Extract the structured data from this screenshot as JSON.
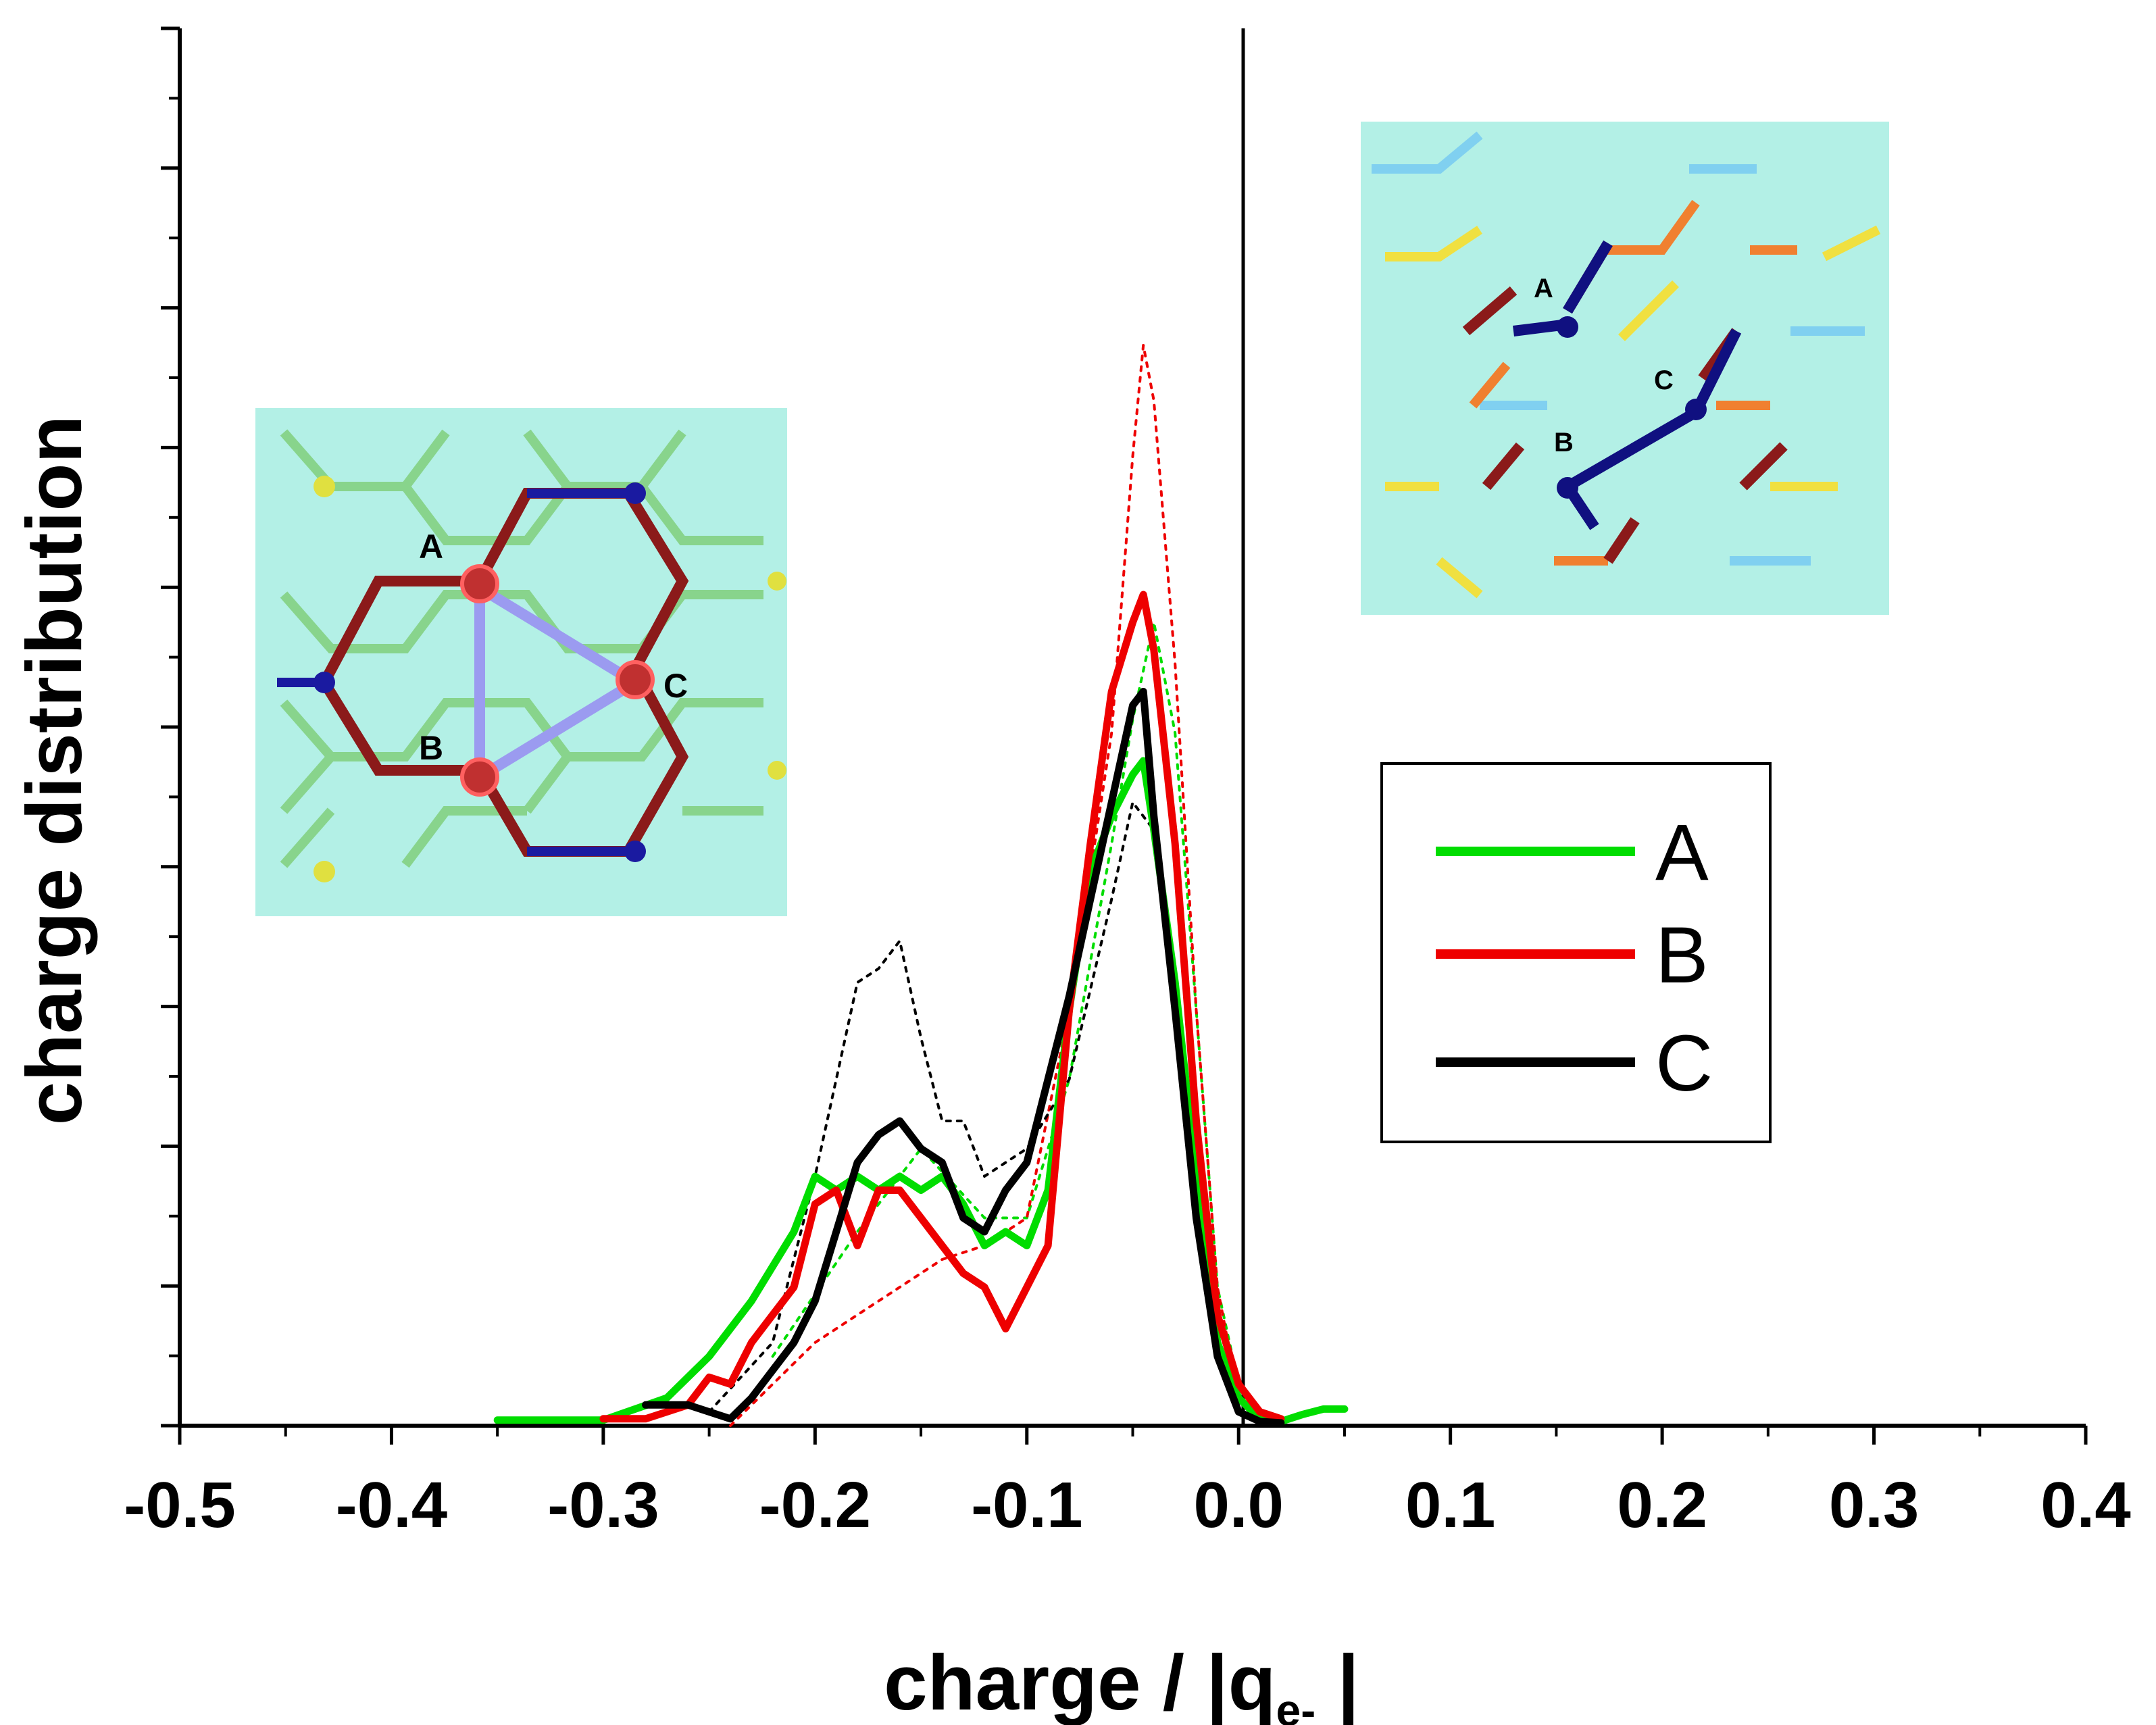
{
  "chart_data": {
    "type": "line",
    "xlabel_main": "charge / |q",
    "xlabel_sub": "e-",
    "xlabel_end": " |",
    "ylabel": "charge distribution",
    "xlim": [
      -0.5,
      0.4
    ],
    "ylim": [
      0,
      1
    ],
    "x_ticks": [
      -0.5,
      -0.4,
      -0.3,
      -0.2,
      -0.1,
      0.0,
      0.1,
      0.2,
      0.3,
      0.4
    ],
    "x_tick_labels": [
      "-0.5",
      "-0.4",
      "-0.3",
      "-0.2",
      "-0.1",
      "0.0",
      "0.1",
      "0.2",
      "0.3",
      "0.4"
    ],
    "y_tick_labels_shown": false,
    "vertical_reference_line_x": 0.0,
    "legend": {
      "position": "right",
      "entries": [
        {
          "label": "A",
          "color": "#00dd00"
        },
        {
          "label": "B",
          "color": "#ee0000"
        },
        {
          "label": "C",
          "color": "#000000"
        }
      ]
    },
    "series": [
      {
        "name": "A",
        "color": "#00dd00",
        "style": "solid",
        "x": [
          -0.35,
          -0.3,
          -0.27,
          -0.25,
          -0.23,
          -0.21,
          -0.2,
          -0.19,
          -0.18,
          -0.17,
          -0.16,
          -0.15,
          -0.14,
          -0.13,
          -0.12,
          -0.11,
          -0.1,
          -0.09,
          -0.08,
          -0.07,
          -0.06,
          -0.05,
          -0.045,
          -0.04,
          -0.03,
          -0.02,
          -0.01,
          0.0,
          0.01,
          0.02,
          0.03,
          0.04,
          0.05
        ],
        "values": [
          0.004,
          0.004,
          0.02,
          0.05,
          0.09,
          0.14,
          0.18,
          0.17,
          0.18,
          0.17,
          0.18,
          0.17,
          0.18,
          0.16,
          0.13,
          0.14,
          0.13,
          0.17,
          0.3,
          0.4,
          0.44,
          0.47,
          0.48,
          0.43,
          0.32,
          0.18,
          0.06,
          0.02,
          0.005,
          0.003,
          0.008,
          0.012,
          0.012
        ]
      },
      {
        "name": "A (dotted)",
        "color": "#00dd00",
        "style": "dotted",
        "x": [
          -0.22,
          -0.18,
          -0.15,
          -0.12,
          -0.1,
          -0.08,
          -0.06,
          -0.05,
          -0.04,
          -0.03,
          -0.02,
          -0.01,
          0.0
        ],
        "values": [
          0.05,
          0.14,
          0.2,
          0.15,
          0.15,
          0.25,
          0.42,
          0.51,
          0.58,
          0.5,
          0.3,
          0.1,
          0.03
        ]
      },
      {
        "name": "B",
        "color": "#ee0000",
        "style": "solid",
        "x": [
          -0.3,
          -0.28,
          -0.26,
          -0.25,
          -0.24,
          -0.23,
          -0.22,
          -0.21,
          -0.2,
          -0.19,
          -0.18,
          -0.17,
          -0.16,
          -0.15,
          -0.14,
          -0.13,
          -0.12,
          -0.11,
          -0.1,
          -0.09,
          -0.08,
          -0.07,
          -0.06,
          -0.05,
          -0.045,
          -0.04,
          -0.03,
          -0.02,
          -0.01,
          0.0,
          0.01,
          0.02
        ],
        "values": [
          0.005,
          0.005,
          0.015,
          0.035,
          0.03,
          0.06,
          0.08,
          0.1,
          0.16,
          0.17,
          0.13,
          0.17,
          0.17,
          0.15,
          0.13,
          0.11,
          0.1,
          0.07,
          0.1,
          0.13,
          0.3,
          0.42,
          0.53,
          0.58,
          0.6,
          0.56,
          0.42,
          0.22,
          0.08,
          0.03,
          0.01,
          0.005
        ]
      },
      {
        "name": "B (dotted)",
        "color": "#ee0000",
        "style": "dotted",
        "x": [
          -0.24,
          -0.2,
          -0.17,
          -0.14,
          -0.12,
          -0.1,
          -0.08,
          -0.06,
          -0.05,
          -0.045,
          -0.04,
          -0.03,
          -0.02,
          -0.01,
          0.0
        ],
        "values": [
          0.0,
          0.06,
          0.09,
          0.12,
          0.13,
          0.15,
          0.3,
          0.5,
          0.7,
          0.78,
          0.74,
          0.55,
          0.3,
          0.1,
          0.02
        ]
      },
      {
        "name": "C",
        "color": "#000000",
        "style": "solid",
        "x": [
          -0.28,
          -0.26,
          -0.24,
          -0.23,
          -0.22,
          -0.21,
          -0.2,
          -0.19,
          -0.18,
          -0.17,
          -0.16,
          -0.15,
          -0.14,
          -0.13,
          -0.12,
          -0.11,
          -0.1,
          -0.09,
          -0.08,
          -0.07,
          -0.06,
          -0.05,
          -0.045,
          -0.04,
          -0.03,
          -0.02,
          -0.01,
          0.0,
          0.01,
          0.02
        ],
        "values": [
          0.015,
          0.015,
          0.005,
          0.02,
          0.04,
          0.06,
          0.09,
          0.14,
          0.19,
          0.21,
          0.22,
          0.2,
          0.19,
          0.15,
          0.14,
          0.17,
          0.19,
          0.25,
          0.31,
          0.38,
          0.45,
          0.52,
          0.53,
          0.44,
          0.3,
          0.15,
          0.05,
          0.01,
          0.003,
          0.002
        ]
      },
      {
        "name": "C (dotted)",
        "color": "#000000",
        "style": "dotted",
        "x": [
          -0.25,
          -0.22,
          -0.2,
          -0.18,
          -0.17,
          -0.16,
          -0.15,
          -0.14,
          -0.13,
          -0.12,
          -0.1,
          -0.08,
          -0.06,
          -0.05,
          -0.04,
          -0.03,
          -0.02,
          -0.01,
          0.0
        ],
        "values": [
          0.01,
          0.06,
          0.18,
          0.32,
          0.33,
          0.35,
          0.28,
          0.22,
          0.22,
          0.18,
          0.2,
          0.25,
          0.38,
          0.45,
          0.43,
          0.32,
          0.16,
          0.05,
          0.01
        ]
      }
    ],
    "insets": [
      {
        "name": "left-inset",
        "labels": [
          "A",
          "B",
          "C"
        ]
      },
      {
        "name": "right-inset",
        "labels": [
          "A",
          "B",
          "C"
        ]
      }
    ]
  }
}
